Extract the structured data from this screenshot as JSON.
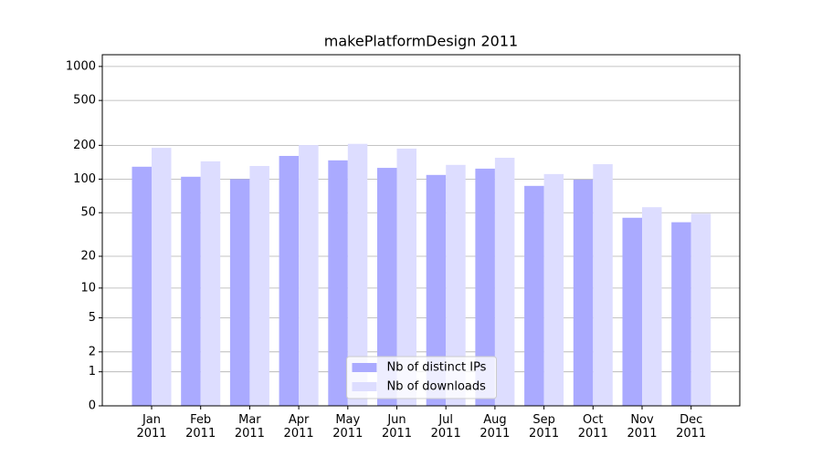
{
  "chart_data": {
    "type": "bar",
    "title": "makePlatformDesign 2011",
    "categories": [
      "Jan\n2011",
      "Feb\n2011",
      "Mar\n2011",
      "Apr\n2011",
      "May\n2011",
      "Jun\n2011",
      "Jul\n2011",
      "Aug\n2011",
      "Sep\n2011",
      "Oct\n2011",
      "Nov\n2011",
      "Dec\n2011"
    ],
    "series": [
      {
        "name": "Nb of distinct IPs",
        "color": "#aaaaff",
        "values": [
          129,
          105,
          100,
          161,
          147,
          126,
          109,
          124,
          87,
          99,
          45,
          41
        ]
      },
      {
        "name": "Nb of downloads",
        "color": "#ddddff",
        "values": [
          190,
          144,
          131,
          201,
          206,
          187,
          134,
          155,
          111,
          136,
          56,
          49
        ]
      }
    ],
    "yscale": "log1p",
    "ylim": [
      0,
      1270
    ],
    "yticks": [
      0,
      1,
      2,
      5,
      10,
      20,
      50,
      100,
      200,
      500,
      1000
    ],
    "grid": true,
    "legend": "lower center"
  }
}
